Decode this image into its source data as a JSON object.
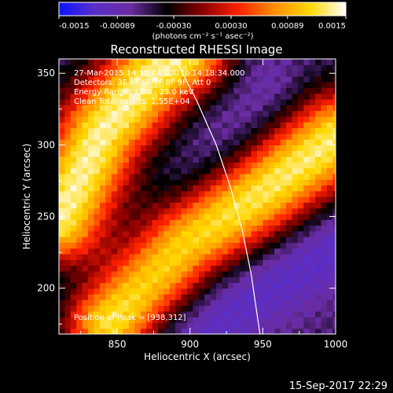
{
  "chart_data": {
    "type": "heatmap",
    "title": "Reconstructed RHESSI Image",
    "xlabel": "Heliocentric X (arcsec)",
    "ylabel": "Heliocentric Y (arcsec)",
    "xlim": [
      810,
      1000
    ],
    "ylim": [
      168,
      360
    ],
    "x_ticks": [
      850,
      900,
      950,
      1000
    ],
    "y_ticks": [
      200,
      250,
      300,
      350
    ],
    "colorbar": {
      "range": [
        -0.0015,
        0.0015
      ],
      "ticks": [
        "-0.0015",
        "-0.00089",
        "-0.00030",
        "0.00030",
        "0.00089",
        "0.0015"
      ],
      "unit_label": "(photons cm⁻² s⁻¹ asec⁻²)",
      "stops": [
        "#0a14ff",
        "#5a2fc9",
        "#6a2ca0",
        "#000000",
        "#8b0000",
        "#ff2000",
        "#ff8c00",
        "#ffd800",
        "#ffffff"
      ]
    },
    "info_lines": [
      "27-Mar-2015 14:18:04.000 to 14:18:34.000",
      "Detectors: 3F 4F 6F 7F 8F 9F, Att 0",
      "Energy Range: 12.0 - 25.0 keV",
      "Clean     Total counts: 1.55E+04"
    ],
    "peak_label": "Position of Peak = [938,312]",
    "peak_position": [
      938,
      312
    ],
    "limb_curve": [
      [
        890,
        360
      ],
      [
        905,
        330
      ],
      [
        918,
        300
      ],
      [
        928,
        270
      ],
      [
        936,
        240
      ],
      [
        942,
        210
      ],
      [
        948,
        168
      ]
    ],
    "bands": [
      {
        "center": [
          [
            810,
            248
          ],
          [
            840,
            310
          ],
          [
            870,
            345
          ],
          [
            895,
            365
          ]
        ],
        "peak": 0.00135
      },
      {
        "center": [
          [
            845,
            178
          ],
          [
            895,
            232
          ],
          [
            950,
            268
          ],
          [
            1000,
            305
          ]
        ],
        "peak": 0.0013
      }
    ],
    "negative_lobes": [
      {
        "center": [
          [
            810,
            200
          ],
          [
            860,
            220
          ],
          [
            900,
            265
          ],
          [
            950,
            340
          ]
        ],
        "peak": -0.0009
      },
      {
        "center": [
          [
            900,
            168
          ],
          [
            950,
            200
          ],
          [
            1000,
            230
          ]
        ],
        "peak": -0.0011
      }
    ]
  },
  "timestamp": "15-Sep-2017 22:29"
}
